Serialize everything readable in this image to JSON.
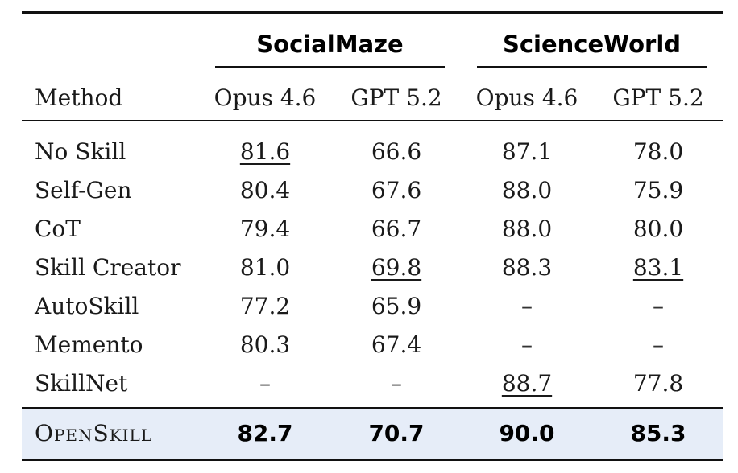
{
  "groups": {
    "socialmaze": "SocialMaze",
    "scienceworld": "ScienceWorld"
  },
  "header": {
    "method": "Method",
    "col1": "Opus 4.6",
    "col2": "GPT 5.2",
    "col3": "Opus 4.6",
    "col4": "GPT 5.2"
  },
  "rows": [
    {
      "method": "No Skill",
      "v1": "81.6",
      "v2": "66.6",
      "v3": "87.1",
      "v4": "78.0"
    },
    {
      "method": "Self-Gen",
      "v1": "80.4",
      "v2": "67.6",
      "v3": "88.0",
      "v4": "75.9"
    },
    {
      "method": "CoT",
      "v1": "79.4",
      "v2": "66.7",
      "v3": "88.0",
      "v4": "80.0"
    },
    {
      "method": "Skill Creator",
      "v1": "81.0",
      "v2": "69.8",
      "v3": "88.3",
      "v4": "83.1"
    },
    {
      "method": "AutoSkill",
      "v1": "77.2",
      "v2": "65.9",
      "v3": "–",
      "v4": "–"
    },
    {
      "method": "Memento",
      "v1": "80.3",
      "v2": "67.4",
      "v3": "–",
      "v4": "–"
    },
    {
      "method": "SkillNet",
      "v1": "–",
      "v2": "–",
      "v3": "88.7",
      "v4": "77.8"
    }
  ],
  "final": {
    "method": "OpenSkill",
    "v1": "82.7",
    "v2": "70.7",
    "v3": "90.0",
    "v4": "85.3"
  },
  "colors": {
    "highlight_row": "#e6edf8",
    "rules": "#111111"
  }
}
